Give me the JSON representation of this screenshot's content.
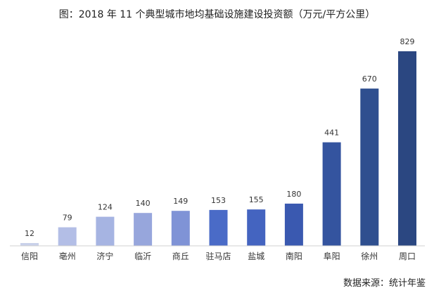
{
  "chart_data": {
    "type": "bar",
    "title": "图：2018 年 11 个典型城市地均基础设施建设投资额（万元/平方公里）",
    "xlabel": "",
    "ylabel": "",
    "ylim": [
      0,
      829
    ],
    "grid": false,
    "legend": "none",
    "categories": [
      "信阳",
      "亳州",
      "济宁",
      "临沂",
      "商丘",
      "驻马店",
      "盐城",
      "南阳",
      "阜阳",
      "徐州",
      "周口"
    ],
    "values": [
      12,
      79,
      124,
      140,
      149,
      153,
      155,
      180,
      441,
      670,
      829
    ],
    "colors": [
      "#c9d1ea",
      "#b3bee6",
      "#a6b4e2",
      "#97a6dc",
      "#7f93d6",
      "#4a6bc7",
      "#4464c0",
      "#3a59b0",
      "#34549f",
      "#2f4f8f",
      "#2b4781"
    ],
    "source": "数据来源：统计年鉴"
  }
}
